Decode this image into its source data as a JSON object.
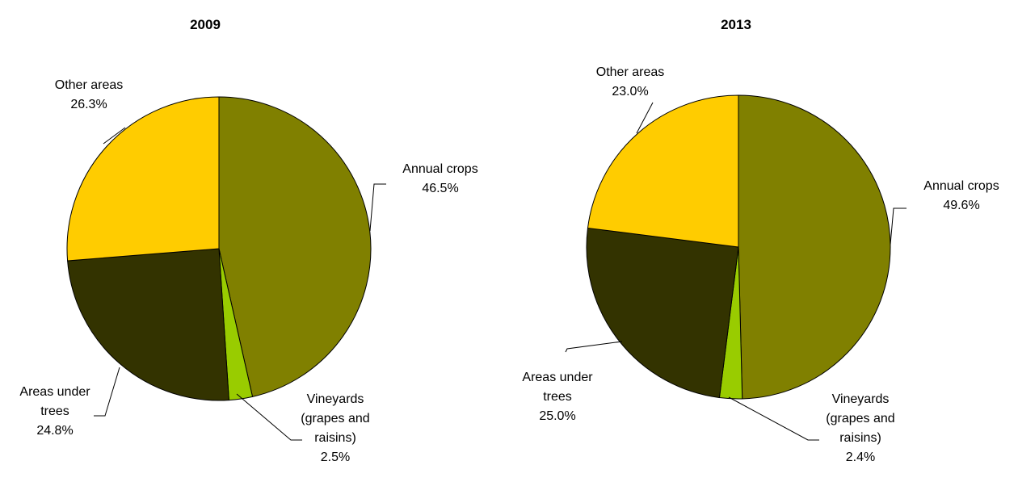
{
  "chart_data": [
    {
      "type": "pie",
      "title": "2009",
      "categories": [
        "Annual crops",
        "Vineyards (grapes and raisins)",
        "Areas under trees",
        "Other areas"
      ],
      "values": [
        46.5,
        2.5,
        24.8,
        26.3
      ],
      "value_labels": [
        "46.5%",
        "2.5%",
        "24.8%",
        "26.3%"
      ],
      "colors": [
        "#808000",
        "#99cc00",
        "#333300",
        "#ffcc00"
      ]
    },
    {
      "type": "pie",
      "title": "2013",
      "categories": [
        "Annual crops",
        "Vineyards (grapes and raisins)",
        "Areas under trees",
        "Other areas"
      ],
      "values": [
        49.6,
        2.4,
        25.0,
        23.0
      ],
      "value_labels": [
        "49.6%",
        "2.4%",
        "25.0%",
        "23.0%"
      ],
      "colors": [
        "#808000",
        "#99cc00",
        "#333300",
        "#ffcc00"
      ]
    }
  ]
}
